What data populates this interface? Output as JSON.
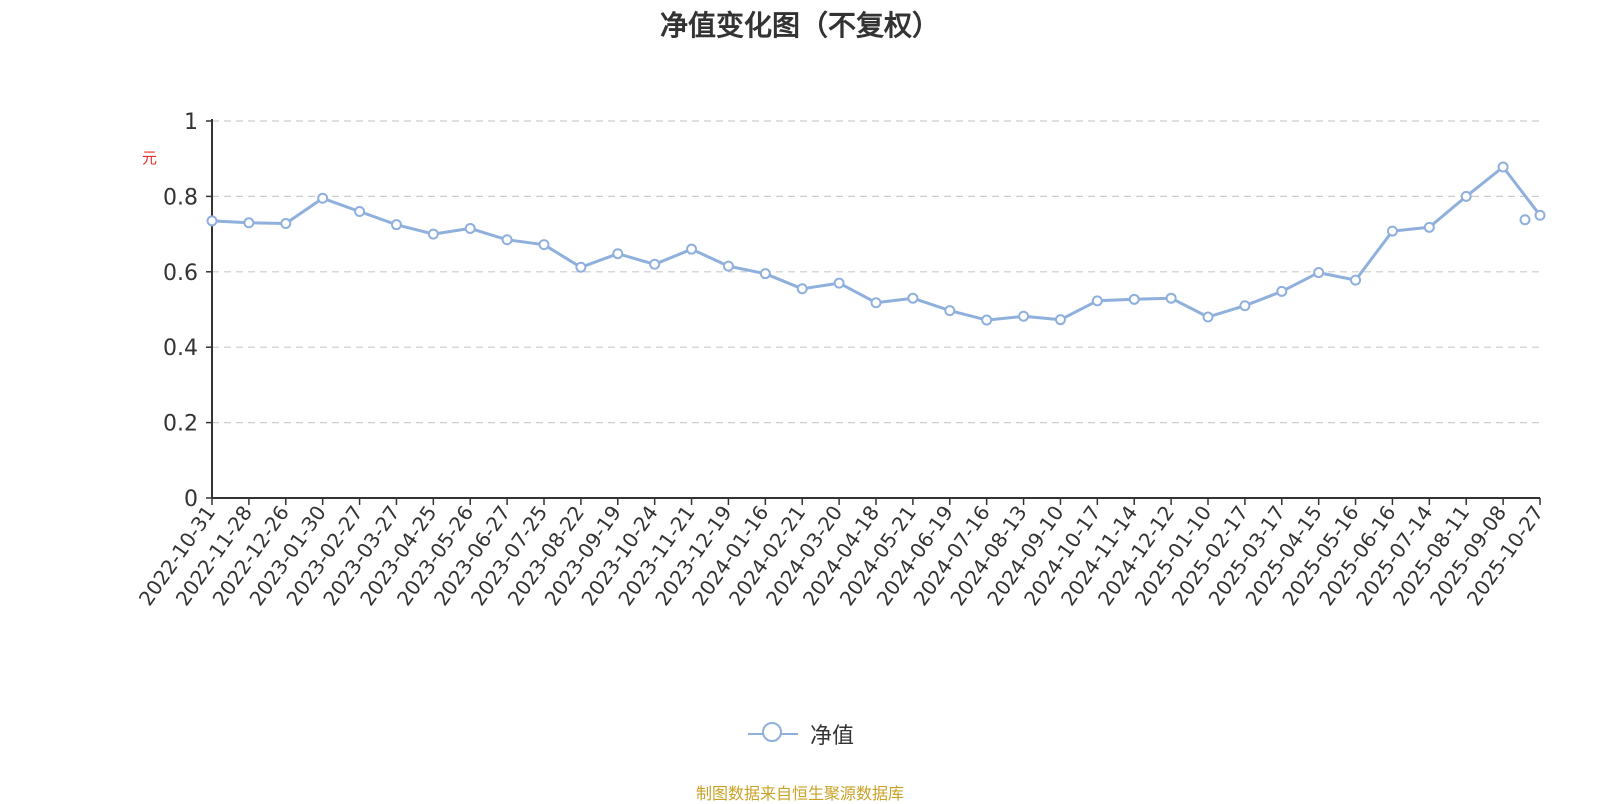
{
  "chart_data": {
    "type": "line",
    "title": "净值变化图（不复权）",
    "ylabel": "元",
    "ylim": [
      0,
      1
    ],
    "yticks": [
      "0",
      "0.2",
      "0.4",
      "0.6",
      "0.8",
      "1"
    ],
    "grid": true,
    "legend_position": "bottom",
    "x_dates": [
      "2022-10-31",
      "2022-11-28",
      "2022-12-26",
      "2023-01-30",
      "2023-02-27",
      "2023-03-27",
      "2023-04-25",
      "2023-05-26",
      "2023-06-27",
      "2023-07-25",
      "2023-08-22",
      "2023-09-19",
      "2023-10-24",
      "2023-11-21",
      "2023-12-19",
      "2024-01-16",
      "2024-02-21",
      "2024-03-20",
      "2024-04-18",
      "2024-05-21",
      "2024-06-19",
      "2024-07-16",
      "2024-08-13",
      "2024-09-10",
      "2024-10-17",
      "2024-11-14",
      "2024-12-12",
      "2025-01-10",
      "2025-02-17",
      "2025-03-17",
      "2025-04-15",
      "2025-05-16",
      "2025-06-16",
      "2025-07-14",
      "2025-08-11",
      "2025-09-08",
      "2025-10-27"
    ],
    "series": [
      {
        "name": "净值",
        "color": "#8fb0dd",
        "values": [
          0.735,
          0.73,
          0.728,
          0.795,
          0.76,
          0.725,
          0.7,
          0.715,
          0.685,
          0.672,
          0.612,
          0.648,
          0.62,
          0.66,
          0.615,
          0.595,
          0.555,
          0.57,
          0.518,
          0.53,
          0.497,
          0.472,
          0.482,
          0.473,
          0.523,
          0.527,
          0.53,
          0.48,
          0.51,
          0.548,
          0.598,
          0.578,
          0.708,
          0.718,
          0.8,
          0.878,
          0.75
        ]
      }
    ],
    "extra_points": [
      {
        "x": "2025-10-27",
        "y": 0.738
      }
    ]
  },
  "legend": {
    "label": "净值"
  },
  "source": "制图数据来自恒生聚源数据库"
}
